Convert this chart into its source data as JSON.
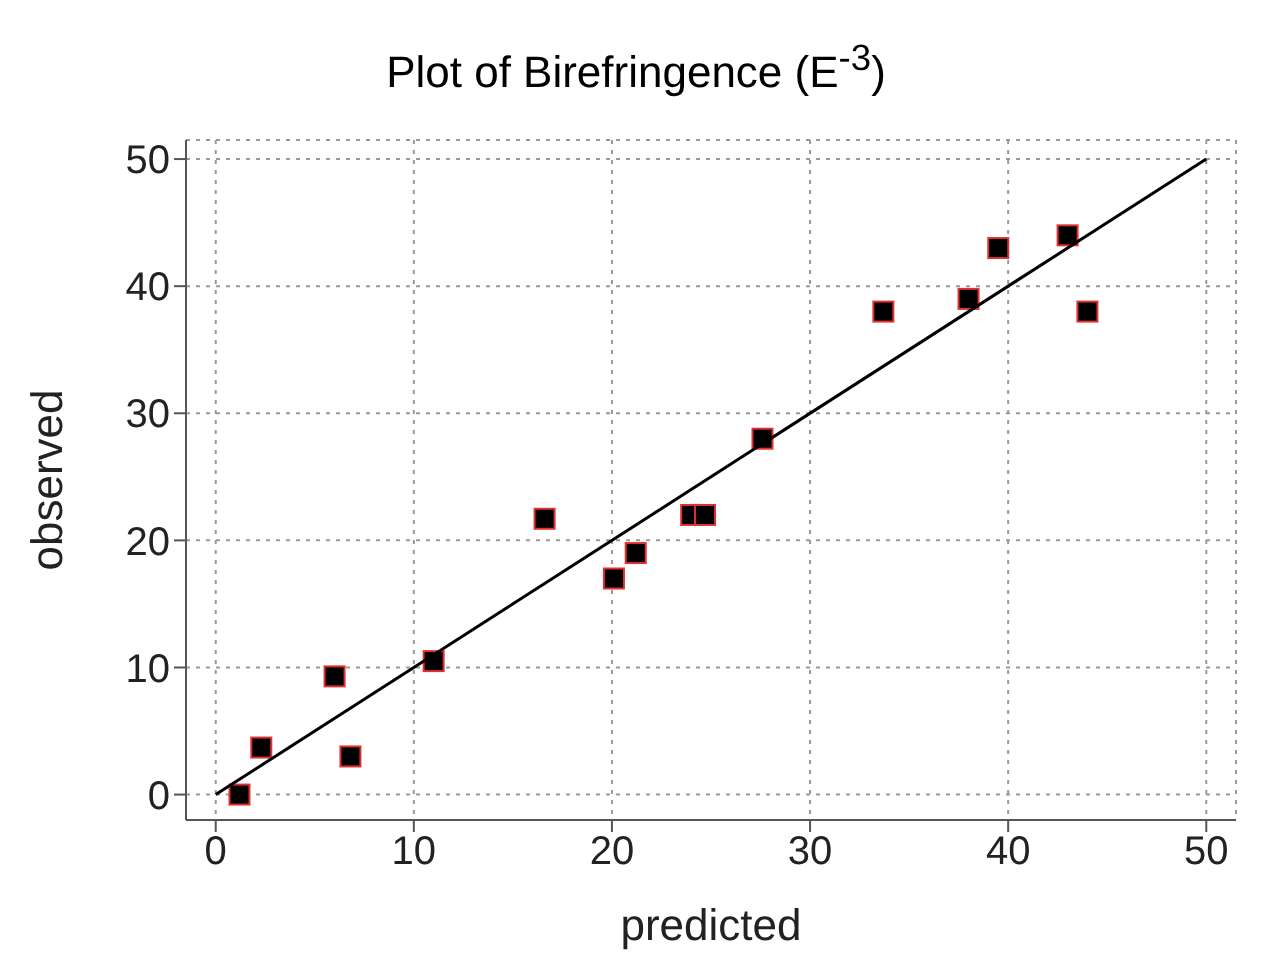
{
  "chart_data": {
    "type": "scatter",
    "title": "Plot of Birefringence (E$^{-3}$)",
    "xlabel": "predicted",
    "ylabel": "observed",
    "series": [
      {
        "color": "#000000",
        "marker": "square",
        "x": [
          1.2,
          2.3,
          6,
          6.8,
          11,
          16.6,
          20.1,
          21.2,
          24,
          24.7,
          27.6,
          33.7,
          38,
          39.5,
          43,
          44
        ],
        "values": [
          0,
          3.7,
          9.3,
          3,
          10.5,
          21.7,
          17,
          19,
          22,
          22,
          28,
          38,
          39,
          43,
          44,
          38
        ]
      },
      {
        "type": "line",
        "marker": "none",
        "color": "#000000",
        "x": [
          0,
          50
        ],
        "values": [
          0,
          50
        ]
      }
    ],
    "xlim": [
      -1.5,
      51.5
    ],
    "ylim": [
      -2,
      51.5
    ],
    "xticks": [
      0,
      10,
      20,
      30,
      40,
      50
    ],
    "yticks": [
      0,
      10,
      20,
      30,
      40,
      50
    ],
    "grid": true
  }
}
